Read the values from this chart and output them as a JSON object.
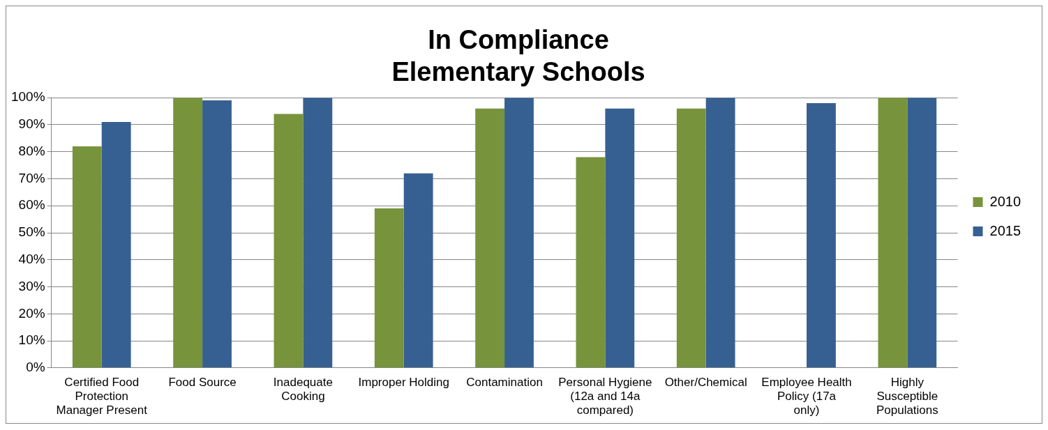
{
  "chart_data": {
    "type": "bar",
    "title": "In Compliance",
    "subtitle": "Elementary Schools",
    "categories": [
      "Certified Food Protection Manager Present",
      "Food Source",
      "Inadequate Cooking",
      "Improper Holding",
      "Contamination",
      "Personal Hygiene (12a and 14a compared)",
      "Other/Chemical",
      "Employee Health Policy (17a only)",
      "Highly Susceptible Populations"
    ],
    "series": [
      {
        "name": "2010",
        "color": "#77933c",
        "values": [
          82,
          100,
          94,
          59,
          96,
          78,
          96,
          null,
          100
        ]
      },
      {
        "name": "2015",
        "color": "#376092",
        "values": [
          91,
          99,
          100,
          72,
          100,
          96,
          100,
          98,
          100
        ]
      }
    ],
    "ylim": [
      0,
      100
    ],
    "yticks": [
      {
        "value": 0,
        "label": "0%"
      },
      {
        "value": 10,
        "label": "10%"
      },
      {
        "value": 20,
        "label": "20%"
      },
      {
        "value": 30,
        "label": "30%"
      },
      {
        "value": 40,
        "label": "40%"
      },
      {
        "value": 50,
        "label": "50%"
      },
      {
        "value": 60,
        "label": "60%"
      },
      {
        "value": 70,
        "label": "70%"
      },
      {
        "value": 80,
        "label": "80%"
      },
      {
        "value": 90,
        "label": "90%"
      },
      {
        "value": 100,
        "label": "100%"
      }
    ],
    "grid": "y",
    "legend": "right"
  }
}
